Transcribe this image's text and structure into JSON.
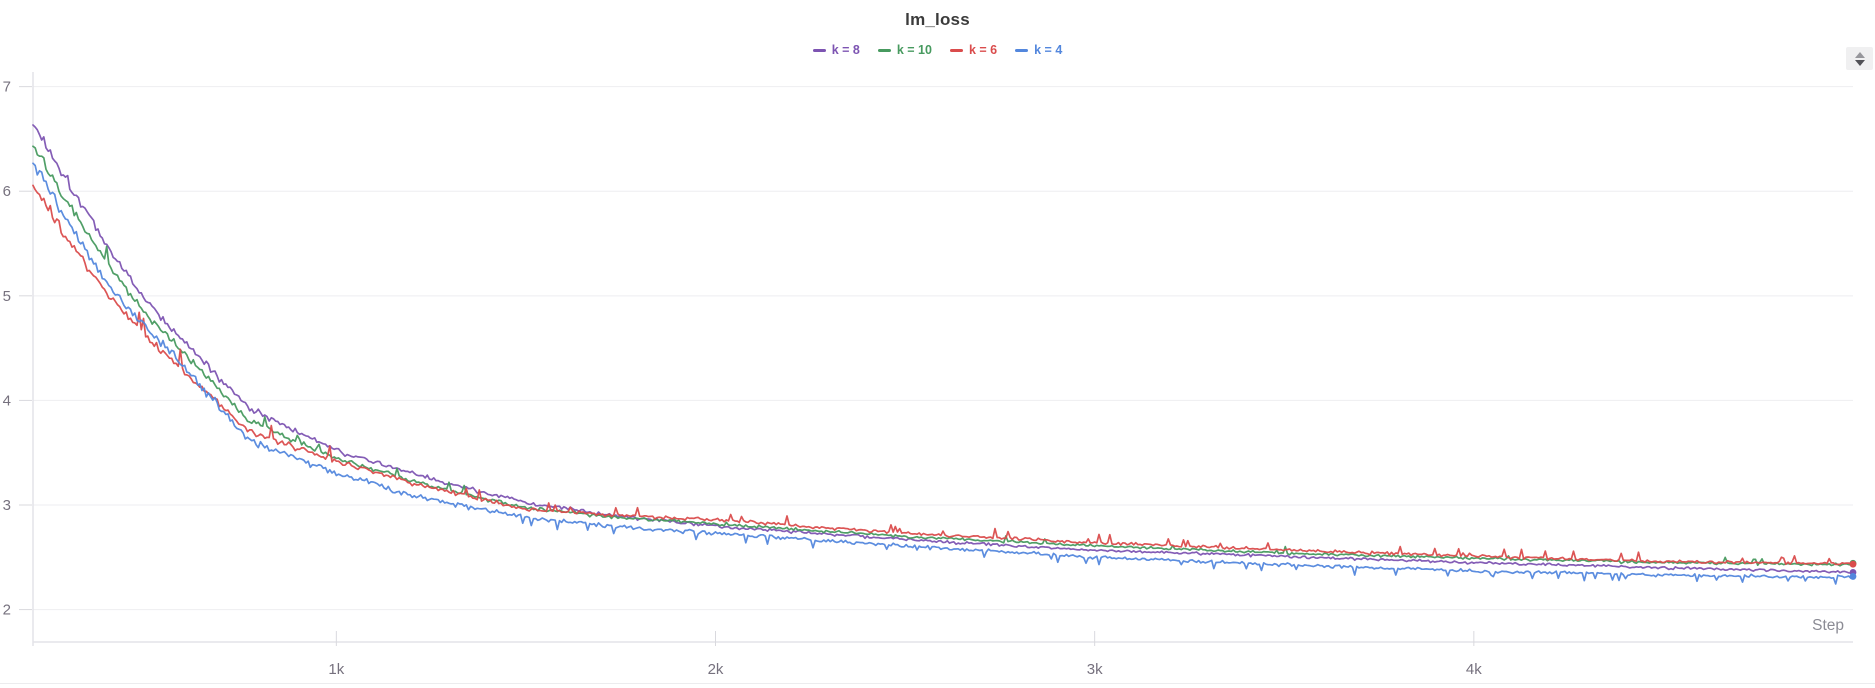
{
  "panel": {
    "title": "lm_loss"
  },
  "legend": {
    "items": [
      {
        "label": "k = 8",
        "color": "#7D54B2"
      },
      {
        "label": "k = 10",
        "color": "#479A5F"
      },
      {
        "label": "k = 6",
        "color": "#DA4C4C"
      },
      {
        "label": "k = 4",
        "color": "#5387DD"
      }
    ]
  },
  "controls": {
    "stepper_icon": "up-down-stepper"
  },
  "axes": {
    "x": {
      "label": "Step",
      "ticks": [
        {
          "value": 1000,
          "label": "1k"
        },
        {
          "value": 2000,
          "label": "2k"
        },
        {
          "value": 3000,
          "label": "3k"
        },
        {
          "value": 4000,
          "label": "4k"
        }
      ]
    },
    "y": {
      "ticks": [
        {
          "value": 7,
          "label": "7"
        },
        {
          "value": 6,
          "label": "6"
        },
        {
          "value": 5,
          "label": "5"
        },
        {
          "value": 4,
          "label": "4"
        },
        {
          "value": 3,
          "label": "3"
        },
        {
          "value": 2,
          "label": "2"
        }
      ]
    }
  },
  "colors": {
    "background": "#ffffff",
    "grid": "#eeeef1",
    "axis": "#e3e3e8",
    "tick": "#d9d9de",
    "tick_label": "#76717e",
    "title": "#3b3b3b",
    "step_label": "#8b8b94"
  },
  "chart_data": {
    "type": "line",
    "title": "lm_loss",
    "xlabel": "Step",
    "ylabel": "",
    "xlim": [
      200,
      5000
    ],
    "ylim": [
      1.69,
      7.14
    ],
    "grid": true,
    "legend_position": "top",
    "x": [
      200,
      300,
      400,
      500,
      600,
      770,
      1000,
      1250,
      1500,
      1750,
      2000,
      2500,
      3000,
      3500,
      4000,
      4500,
      5000
    ],
    "series": [
      {
        "name": "k = 8",
        "color": "#7D54B2",
        "values": [
          6.65,
          6.05,
          5.45,
          4.95,
          4.55,
          3.93,
          3.52,
          3.25,
          3.02,
          2.89,
          2.8,
          2.67,
          2.57,
          2.51,
          2.45,
          2.4,
          2.36
        ]
      },
      {
        "name": "k = 10",
        "color": "#479A5F",
        "values": [
          6.45,
          5.85,
          5.28,
          4.82,
          4.45,
          3.8,
          3.45,
          3.18,
          2.97,
          2.88,
          2.82,
          2.7,
          2.61,
          2.54,
          2.49,
          2.45,
          2.43
        ]
      },
      {
        "name": "k = 6",
        "color": "#DA4C4C",
        "values": [
          6.05,
          5.5,
          5.0,
          4.6,
          4.27,
          3.7,
          3.42,
          3.16,
          2.96,
          2.9,
          2.86,
          2.73,
          2.64,
          2.57,
          2.51,
          2.46,
          2.44
        ]
      },
      {
        "name": "k = 4",
        "color": "#5387DD",
        "values": [
          6.27,
          5.65,
          5.1,
          4.68,
          4.32,
          3.62,
          3.3,
          3.05,
          2.88,
          2.79,
          2.73,
          2.61,
          2.5,
          2.43,
          2.37,
          2.33,
          2.31
        ]
      }
    ]
  }
}
